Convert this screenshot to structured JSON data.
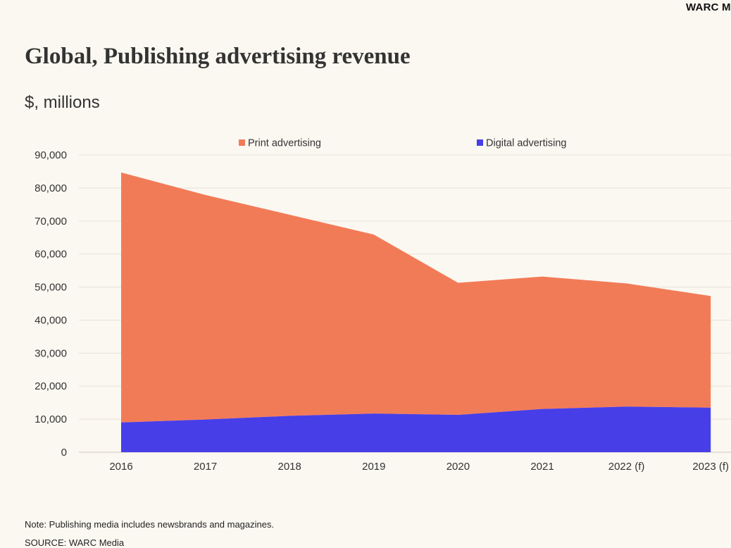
{
  "header": {
    "brand": "WARC M"
  },
  "chart_data": {
    "type": "area",
    "stacked": true,
    "title": "Global, Publishing advertising revenue",
    "subtitle": "$, millions",
    "categories": [
      "2016",
      "2017",
      "2018",
      "2019",
      "2020",
      "2021",
      "2022 (f)",
      "2023 (f)"
    ],
    "series": [
      {
        "name": "Print advertising",
        "color": "#f27b57",
        "values": [
          75700,
          68000,
          60900,
          54200,
          40000,
          40100,
          37300,
          33800
        ]
      },
      {
        "name": "Digital advertising",
        "color": "#473ee8",
        "values": [
          9000,
          9900,
          11000,
          11700,
          11300,
          13100,
          13800,
          13500
        ]
      }
    ],
    "ylim": [
      0,
      90000
    ],
    "yticks": [
      "0",
      "10,000",
      "20,000",
      "30,000",
      "40,000",
      "50,000",
      "60,000",
      "70,000",
      "80,000",
      "90,000"
    ],
    "ytick_values": [
      0,
      10000,
      20000,
      30000,
      40000,
      50000,
      60000,
      70000,
      80000,
      90000
    ],
    "grid": true,
    "legend_position": "top"
  },
  "footer": {
    "note": "Note: Publishing media includes newsbrands and magazines.",
    "source": "SOURCE: WARC Media"
  }
}
